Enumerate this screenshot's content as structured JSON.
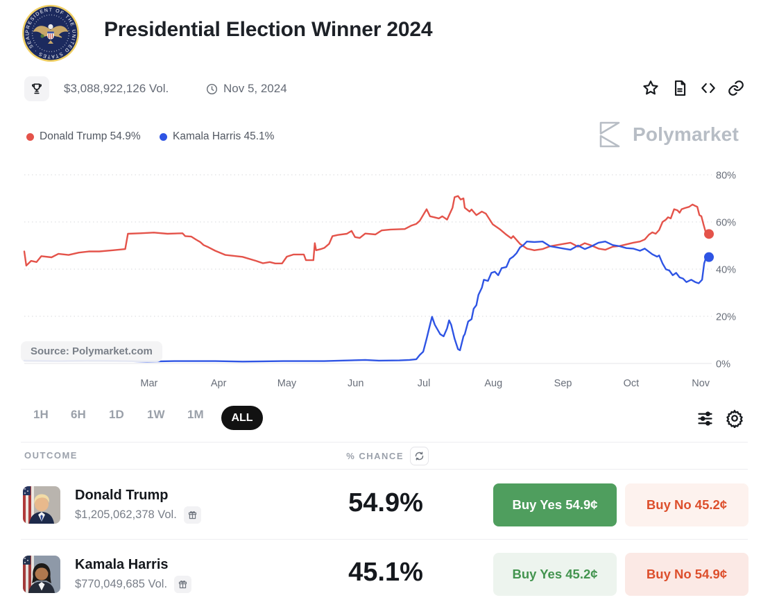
{
  "header": {
    "title": "Presidential Election Winner 2024"
  },
  "stats": {
    "volume": "$3,088,922,126 Vol.",
    "date": "Nov 5, 2024"
  },
  "legend": [
    {
      "label": "Donald Trump 54.9%",
      "color": "#e4534a"
    },
    {
      "label": "Kamala Harris 45.1%",
      "color": "#2e54e4"
    }
  ],
  "watermark": {
    "label": "Polymarket"
  },
  "source_label": "Source: Polymarket.com",
  "range_buttons": [
    {
      "label": "1H"
    },
    {
      "label": "6H"
    },
    {
      "label": "1D"
    },
    {
      "label": "1W"
    },
    {
      "label": "1M"
    },
    {
      "label": "ALL"
    }
  ],
  "active_range": "ALL",
  "chart_data": {
    "type": "line",
    "title": "Presidential Election Winner 2024",
    "ylabel": "% chance",
    "ylim": [
      0,
      80
    ],
    "grid": "dotted-horizontal",
    "legend_position": "top-left",
    "yticks": [
      {
        "value": 0,
        "label": "0%"
      },
      {
        "value": 20,
        "label": "20%"
      },
      {
        "value": 40,
        "label": "40%"
      },
      {
        "value": 60,
        "label": "60%"
      },
      {
        "value": 80,
        "label": "80%"
      }
    ],
    "xticks": [
      {
        "f": 0.183,
        "label": "Mar"
      },
      {
        "f": 0.285,
        "label": "Apr"
      },
      {
        "f": 0.385,
        "label": "May"
      },
      {
        "f": 0.486,
        "label": "Jun"
      },
      {
        "f": 0.586,
        "label": "Jul"
      },
      {
        "f": 0.688,
        "label": "Aug"
      },
      {
        "f": 0.79,
        "label": "Sep"
      },
      {
        "f": 0.89,
        "label": "Oct"
      },
      {
        "f": 0.992,
        "label": "Nov"
      }
    ],
    "series": [
      {
        "name": "Donald Trump",
        "color": "#e4534a",
        "final": 54.9,
        "points": [
          [
            0,
            47.5
          ],
          [
            0.003,
            41.5
          ],
          [
            0.01,
            43.5
          ],
          [
            0.018,
            43
          ],
          [
            0.025,
            45.5
          ],
          [
            0.04,
            45
          ],
          [
            0.05,
            46.5
          ],
          [
            0.065,
            46
          ],
          [
            0.08,
            47
          ],
          [
            0.095,
            47.5
          ],
          [
            0.11,
            47.5
          ],
          [
            0.13,
            48
          ],
          [
            0.148,
            48.5
          ],
          [
            0.152,
            55
          ],
          [
            0.17,
            55.2
          ],
          [
            0.19,
            55.5
          ],
          [
            0.21,
            55
          ],
          [
            0.232,
            55.2
          ],
          [
            0.236,
            54
          ],
          [
            0.245,
            53.8
          ],
          [
            0.252,
            52.5
          ],
          [
            0.258,
            51.5
          ],
          [
            0.263,
            50.2
          ],
          [
            0.27,
            49.3
          ],
          [
            0.28,
            47.8
          ],
          [
            0.295,
            46
          ],
          [
            0.32,
            45.2
          ],
          [
            0.34,
            43.5
          ],
          [
            0.35,
            42.5
          ],
          [
            0.36,
            43
          ],
          [
            0.368,
            42.4
          ],
          [
            0.378,
            42.4
          ],
          [
            0.385,
            45.3
          ],
          [
            0.395,
            46.2
          ],
          [
            0.41,
            46.2
          ],
          [
            0.413,
            43.8
          ],
          [
            0.424,
            43.8
          ],
          [
            0.426,
            51
          ],
          [
            0.428,
            48
          ],
          [
            0.435,
            48.5
          ],
          [
            0.44,
            49
          ],
          [
            0.447,
            50.7
          ],
          [
            0.452,
            54
          ],
          [
            0.46,
            54.5
          ],
          [
            0.473,
            55
          ],
          [
            0.48,
            56.2
          ],
          [
            0.485,
            53.6
          ],
          [
            0.492,
            53.2
          ],
          [
            0.5,
            55.1
          ],
          [
            0.515,
            54.7
          ],
          [
            0.524,
            56.4
          ],
          [
            0.537,
            56.8
          ],
          [
            0.558,
            57
          ],
          [
            0.568,
            58.5
          ],
          [
            0.575,
            59.2
          ],
          [
            0.58,
            60.5
          ],
          [
            0.59,
            65.4
          ],
          [
            0.595,
            62.4
          ],
          [
            0.601,
            62
          ],
          [
            0.608,
            61.5
          ],
          [
            0.613,
            62.4
          ],
          [
            0.62,
            61
          ],
          [
            0.628,
            66
          ],
          [
            0.631,
            70.5
          ],
          [
            0.636,
            71
          ],
          [
            0.64,
            69.5
          ],
          [
            0.644,
            70
          ],
          [
            0.646,
            66
          ],
          [
            0.653,
            64.4
          ],
          [
            0.656,
            65.3
          ],
          [
            0.663,
            62.9
          ],
          [
            0.671,
            64.4
          ],
          [
            0.677,
            63.5
          ],
          [
            0.687,
            59
          ],
          [
            0.697,
            57
          ],
          [
            0.707,
            54.6
          ],
          [
            0.714,
            53.1
          ],
          [
            0.717,
            54
          ],
          [
            0.727,
            50.7
          ],
          [
            0.732,
            49.7
          ],
          [
            0.737,
            48.7
          ],
          [
            0.748,
            48
          ],
          [
            0.76,
            48.5
          ],
          [
            0.771,
            49.7
          ],
          [
            0.781,
            50.2
          ],
          [
            0.791,
            50.7
          ],
          [
            0.801,
            51.2
          ],
          [
            0.812,
            49.5
          ],
          [
            0.822,
            51
          ],
          [
            0.832,
            50
          ],
          [
            0.842,
            48.7
          ],
          [
            0.852,
            48.2
          ],
          [
            0.863,
            49.5
          ],
          [
            0.873,
            49.8
          ],
          [
            0.883,
            50.5
          ],
          [
            0.893,
            51.2
          ],
          [
            0.903,
            51.7
          ],
          [
            0.91,
            52.6
          ],
          [
            0.916,
            54.6
          ],
          [
            0.921,
            55.6
          ],
          [
            0.926,
            55
          ],
          [
            0.931,
            56.6
          ],
          [
            0.936,
            60
          ],
          [
            0.941,
            61
          ],
          [
            0.944,
            62
          ],
          [
            0.948,
            61.5
          ],
          [
            0.953,
            65.4
          ],
          [
            0.958,
            64.9
          ],
          [
            0.961,
            63.9
          ],
          [
            0.964,
            65.4
          ],
          [
            0.969,
            65.9
          ],
          [
            0.975,
            66.4
          ],
          [
            0.98,
            67.4
          ],
          [
            0.984,
            66.8
          ],
          [
            0.987,
            66.4
          ],
          [
            0.99,
            62.9
          ],
          [
            0.993,
            62.4
          ],
          [
            0.996,
            59
          ],
          [
            1,
            54.9
          ]
        ]
      },
      {
        "name": "Kamala Harris",
        "color": "#2e54e4",
        "final": 45.1,
        "points": [
          [
            0,
            1.2
          ],
          [
            0.05,
            1
          ],
          [
            0.1,
            1.2
          ],
          [
            0.15,
            1
          ],
          [
            0.18,
            0.8
          ],
          [
            0.22,
            1
          ],
          [
            0.28,
            1
          ],
          [
            0.32,
            0.8
          ],
          [
            0.38,
            1
          ],
          [
            0.44,
            1
          ],
          [
            0.5,
            1.5
          ],
          [
            0.52,
            1.2
          ],
          [
            0.55,
            1.3
          ],
          [
            0.565,
            1.5
          ],
          [
            0.575,
            1.8
          ],
          [
            0.58,
            3.6
          ],
          [
            0.585,
            5
          ],
          [
            0.59,
            10.5
          ],
          [
            0.595,
            16.4
          ],
          [
            0.598,
            19.8
          ],
          [
            0.602,
            16.4
          ],
          [
            0.605,
            14.9
          ],
          [
            0.61,
            12.4
          ],
          [
            0.615,
            11.5
          ],
          [
            0.62,
            14.9
          ],
          [
            0.623,
            18.3
          ],
          [
            0.626,
            16.4
          ],
          [
            0.631,
            10.5
          ],
          [
            0.636,
            6.1
          ],
          [
            0.639,
            5.6
          ],
          [
            0.644,
            11.5
          ],
          [
            0.646,
            12.4
          ],
          [
            0.651,
            17.8
          ],
          [
            0.656,
            18.8
          ],
          [
            0.659,
            23.2
          ],
          [
            0.663,
            24.7
          ],
          [
            0.666,
            29.1
          ],
          [
            0.671,
            32.1
          ],
          [
            0.674,
            35.5
          ],
          [
            0.68,
            35
          ],
          [
            0.685,
            38.4
          ],
          [
            0.69,
            38.9
          ],
          [
            0.695,
            37.4
          ],
          [
            0.7,
            40.4
          ],
          [
            0.707,
            40.9
          ],
          [
            0.712,
            44.3
          ],
          [
            0.717,
            45.3
          ],
          [
            0.722,
            46.8
          ],
          [
            0.727,
            49.2
          ],
          [
            0.732,
            50.2
          ],
          [
            0.737,
            51.7
          ],
          [
            0.748,
            51.5
          ],
          [
            0.76,
            51.7
          ],
          [
            0.771,
            49.7
          ],
          [
            0.781,
            49.2
          ],
          [
            0.791,
            48.7
          ],
          [
            0.801,
            48.2
          ],
          [
            0.812,
            50
          ],
          [
            0.822,
            48.5
          ],
          [
            0.832,
            49.7
          ],
          [
            0.842,
            51.2
          ],
          [
            0.852,
            51.7
          ],
          [
            0.863,
            50.2
          ],
          [
            0.873,
            49.7
          ],
          [
            0.883,
            48.9
          ],
          [
            0.893,
            48.7
          ],
          [
            0.903,
            47.8
          ],
          [
            0.91,
            48.7
          ],
          [
            0.921,
            46.3
          ],
          [
            0.928,
            45.3
          ],
          [
            0.931,
            45.8
          ],
          [
            0.936,
            42.4
          ],
          [
            0.941,
            39.9
          ],
          [
            0.946,
            39.4
          ],
          [
            0.951,
            37.4
          ],
          [
            0.956,
            38.4
          ],
          [
            0.961,
            36.5
          ],
          [
            0.966,
            36
          ],
          [
            0.971,
            34.5
          ],
          [
            0.978,
            35.5
          ],
          [
            0.984,
            34.5
          ],
          [
            0.989,
            34
          ],
          [
            0.994,
            35.5
          ],
          [
            0.997,
            42.4
          ],
          [
            1,
            45.1
          ]
        ]
      }
    ]
  },
  "table": {
    "outcome_header": "OUTCOME",
    "chance_header": "% CHANCE",
    "rows": [
      {
        "name": "Donald Trump",
        "volume": "$1,205,062,378 Vol.",
        "chance": "54.9%",
        "yes_label": "Buy Yes 54.9¢",
        "no_label": "Buy No 45.2¢",
        "yes_bg": "#4f9e5e",
        "yes_text": "#ffffff",
        "no_bg": "#fdf2ee",
        "no_text": "#dd4f2c"
      },
      {
        "name": "Kamala Harris",
        "volume": "$770,049,685 Vol.",
        "chance": "45.1%",
        "yes_label": "Buy Yes 45.2¢",
        "no_label": "Buy No 54.9¢",
        "yes_bg": "#edf4ee",
        "yes_text": "#43944f",
        "no_bg": "#fbe9e5",
        "no_text": "#dd4f2c"
      }
    ]
  }
}
